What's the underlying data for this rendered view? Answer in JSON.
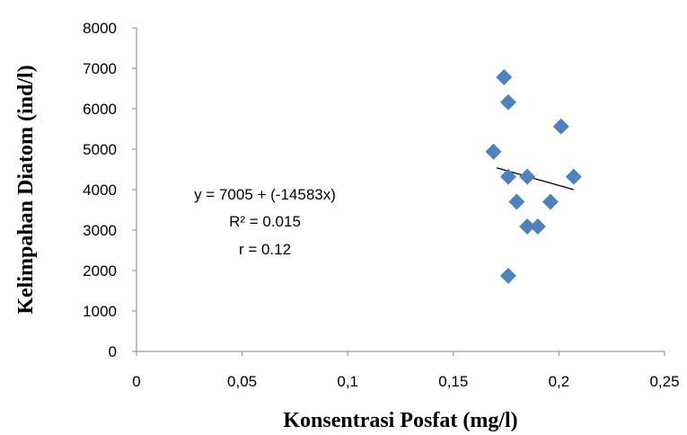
{
  "chart_data": {
    "type": "scatter",
    "title": "",
    "xlabel": "Konsentrasi Posfat (mg/l)",
    "ylabel": "Kelimpahan Diatom (ind/l)",
    "xlim": [
      0,
      0.25
    ],
    "ylim": [
      0,
      8000
    ],
    "x_ticks": [
      "0",
      "0,05",
      "0,1",
      "0,15",
      "0,2",
      "0,25"
    ],
    "x_tick_values": [
      0,
      0.05,
      0.1,
      0.15,
      0.2,
      0.25
    ],
    "y_ticks": [
      "0",
      "1000",
      "2000",
      "3000",
      "4000",
      "5000",
      "6000",
      "7000",
      "8000"
    ],
    "y_tick_values": [
      0,
      1000,
      2000,
      3000,
      4000,
      5000,
      6000,
      7000,
      8000
    ],
    "grid": false,
    "marker": "diamond",
    "marker_color": "#4F81BD",
    "points": [
      {
        "x": 0.174,
        "y": 6780
      },
      {
        "x": 0.176,
        "y": 6160
      },
      {
        "x": 0.201,
        "y": 5560
      },
      {
        "x": 0.169,
        "y": 4940
      },
      {
        "x": 0.176,
        "y": 4320
      },
      {
        "x": 0.185,
        "y": 4320
      },
      {
        "x": 0.207,
        "y": 4320
      },
      {
        "x": 0.18,
        "y": 3700
      },
      {
        "x": 0.196,
        "y": 3700
      },
      {
        "x": 0.185,
        "y": 3090
      },
      {
        "x": 0.19,
        "y": 3090
      },
      {
        "x": 0.176,
        "y": 1870
      }
    ],
    "trendline": {
      "x": [
        0.1705,
        0.207
      ],
      "y": [
        4540,
        4000
      ],
      "color": "#000000"
    },
    "annotations": {
      "equation": "y =  7005 + (-14583x)",
      "r_squared": "R² = 0.015",
      "r": "r = 0.12"
    }
  }
}
